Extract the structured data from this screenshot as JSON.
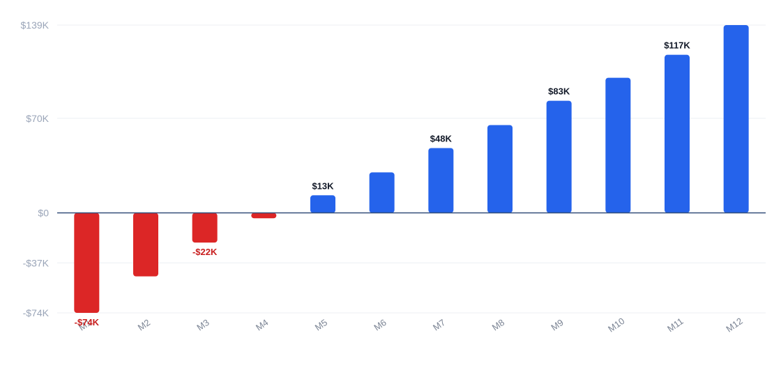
{
  "chart_data": {
    "type": "bar",
    "title": "",
    "xlabel": "",
    "ylabel": "",
    "categories": [
      "M1",
      "M2",
      "M3",
      "M4",
      "M5",
      "M6",
      "M7",
      "M8",
      "M9",
      "M10",
      "M11",
      "M12"
    ],
    "values": [
      -74,
      -47,
      -22,
      -4,
      13,
      30,
      48,
      65,
      83,
      100,
      117,
      139
    ],
    "value_unit": "$K",
    "ylim": [
      -74,
      139
    ],
    "yticks": [
      139,
      70,
      0,
      -37,
      -74
    ],
    "ytick_labels": [
      "$139K",
      "$70K",
      "$0",
      "-$37K",
      "-$74K"
    ],
    "data_labels": [
      {
        "category": "M1",
        "text": "-$74K"
      },
      {
        "category": "M3",
        "text": "-$22K"
      },
      {
        "category": "M5",
        "text": "$13K"
      },
      {
        "category": "M7",
        "text": "$48K"
      },
      {
        "category": "M9",
        "text": "$83K"
      },
      {
        "category": "M11",
        "text": "$117K"
      }
    ],
    "grid": true,
    "colors": {
      "positive": "#2563eb",
      "negative": "#dc2626",
      "zero_line": "#334e7a",
      "grid": "#eceff3",
      "positive_label": "#111827",
      "negative_label": "#c81e1e",
      "tick_label": "#9aa5b8",
      "x_tick_label": "#7b8494"
    }
  }
}
